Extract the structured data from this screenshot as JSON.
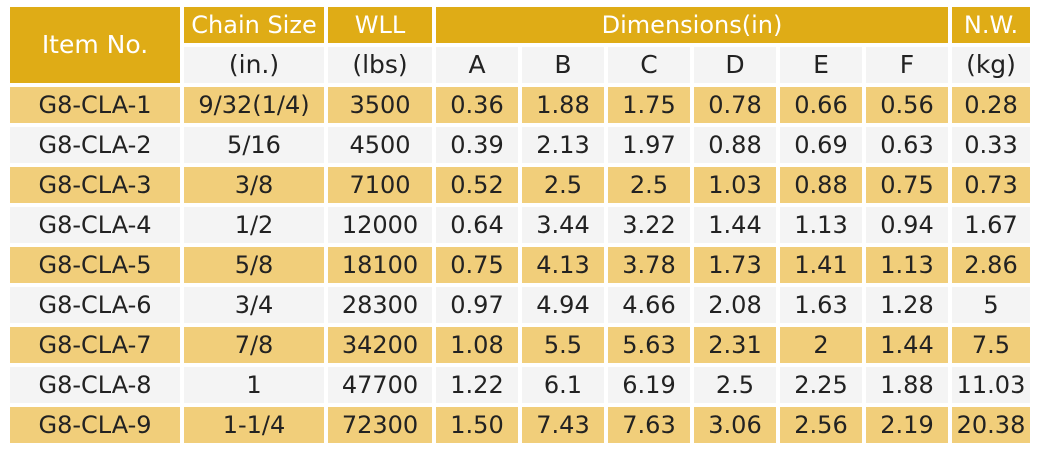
{
  "header": {
    "item_no": "Item No.",
    "chain_size": "Chain Size",
    "wll": "WLL",
    "dimensions": "Dimensions(in)",
    "nw": "N.W."
  },
  "subheader": {
    "chain_size_unit": "(in.)",
    "wll_unit": "(lbs)",
    "a": "A",
    "b": "B",
    "c": "C",
    "d": "D",
    "e": "E",
    "f": "F",
    "nw_unit": "(kg)"
  },
  "rows": [
    {
      "item": "G8-CLA-1",
      "chain": "9/32(1/4)",
      "wll": "3500",
      "a": "0.36",
      "b": "1.88",
      "c": "1.75",
      "d": "0.78",
      "e": "0.66",
      "f": "0.56",
      "nw": "0.28"
    },
    {
      "item": "G8-CLA-2",
      "chain": "5/16",
      "wll": "4500",
      "a": "0.39",
      "b": "2.13",
      "c": "1.97",
      "d": "0.88",
      "e": "0.69",
      "f": "0.63",
      "nw": "0.33"
    },
    {
      "item": "G8-CLA-3",
      "chain": "3/8",
      "wll": "7100",
      "a": "0.52",
      "b": "2.5",
      "c": "2.5",
      "d": "1.03",
      "e": "0.88",
      "f": "0.75",
      "nw": "0.73"
    },
    {
      "item": "G8-CLA-4",
      "chain": "1/2",
      "wll": "12000",
      "a": "0.64",
      "b": "3.44",
      "c": "3.22",
      "d": "1.44",
      "e": "1.13",
      "f": "0.94",
      "nw": "1.67"
    },
    {
      "item": "G8-CLA-5",
      "chain": "5/8",
      "wll": "18100",
      "a": "0.75",
      "b": "4.13",
      "c": "3.78",
      "d": "1.73",
      "e": "1.41",
      "f": "1.13",
      "nw": "2.86"
    },
    {
      "item": "G8-CLA-6",
      "chain": "3/4",
      "wll": "28300",
      "a": "0.97",
      "b": "4.94",
      "c": "4.66",
      "d": "2.08",
      "e": "1.63",
      "f": "1.28",
      "nw": "5"
    },
    {
      "item": "G8-CLA-7",
      "chain": "7/8",
      "wll": "34200",
      "a": "1.08",
      "b": "5.5",
      "c": "5.63",
      "d": "2.31",
      "e": "2",
      "f": "1.44",
      "nw": "7.5"
    },
    {
      "item": "G8-CLA-8",
      "chain": "1",
      "wll": "47700",
      "a": "1.22",
      "b": "6.1",
      "c": "6.19",
      "d": "2.5",
      "e": "2.25",
      "f": "1.88",
      "nw": "11.03"
    },
    {
      "item": "G8-CLA-9",
      "chain": "1-1/4",
      "wll": "72300",
      "a": "1.50",
      "b": "7.43",
      "c": "7.63",
      "d": "3.06",
      "e": "2.56",
      "f": "2.19",
      "nw": "20.38"
    }
  ],
  "colors": {
    "header": "#dfac16",
    "row_highlight": "#f1ce7a",
    "row_plain": "#f4f4f4"
  }
}
